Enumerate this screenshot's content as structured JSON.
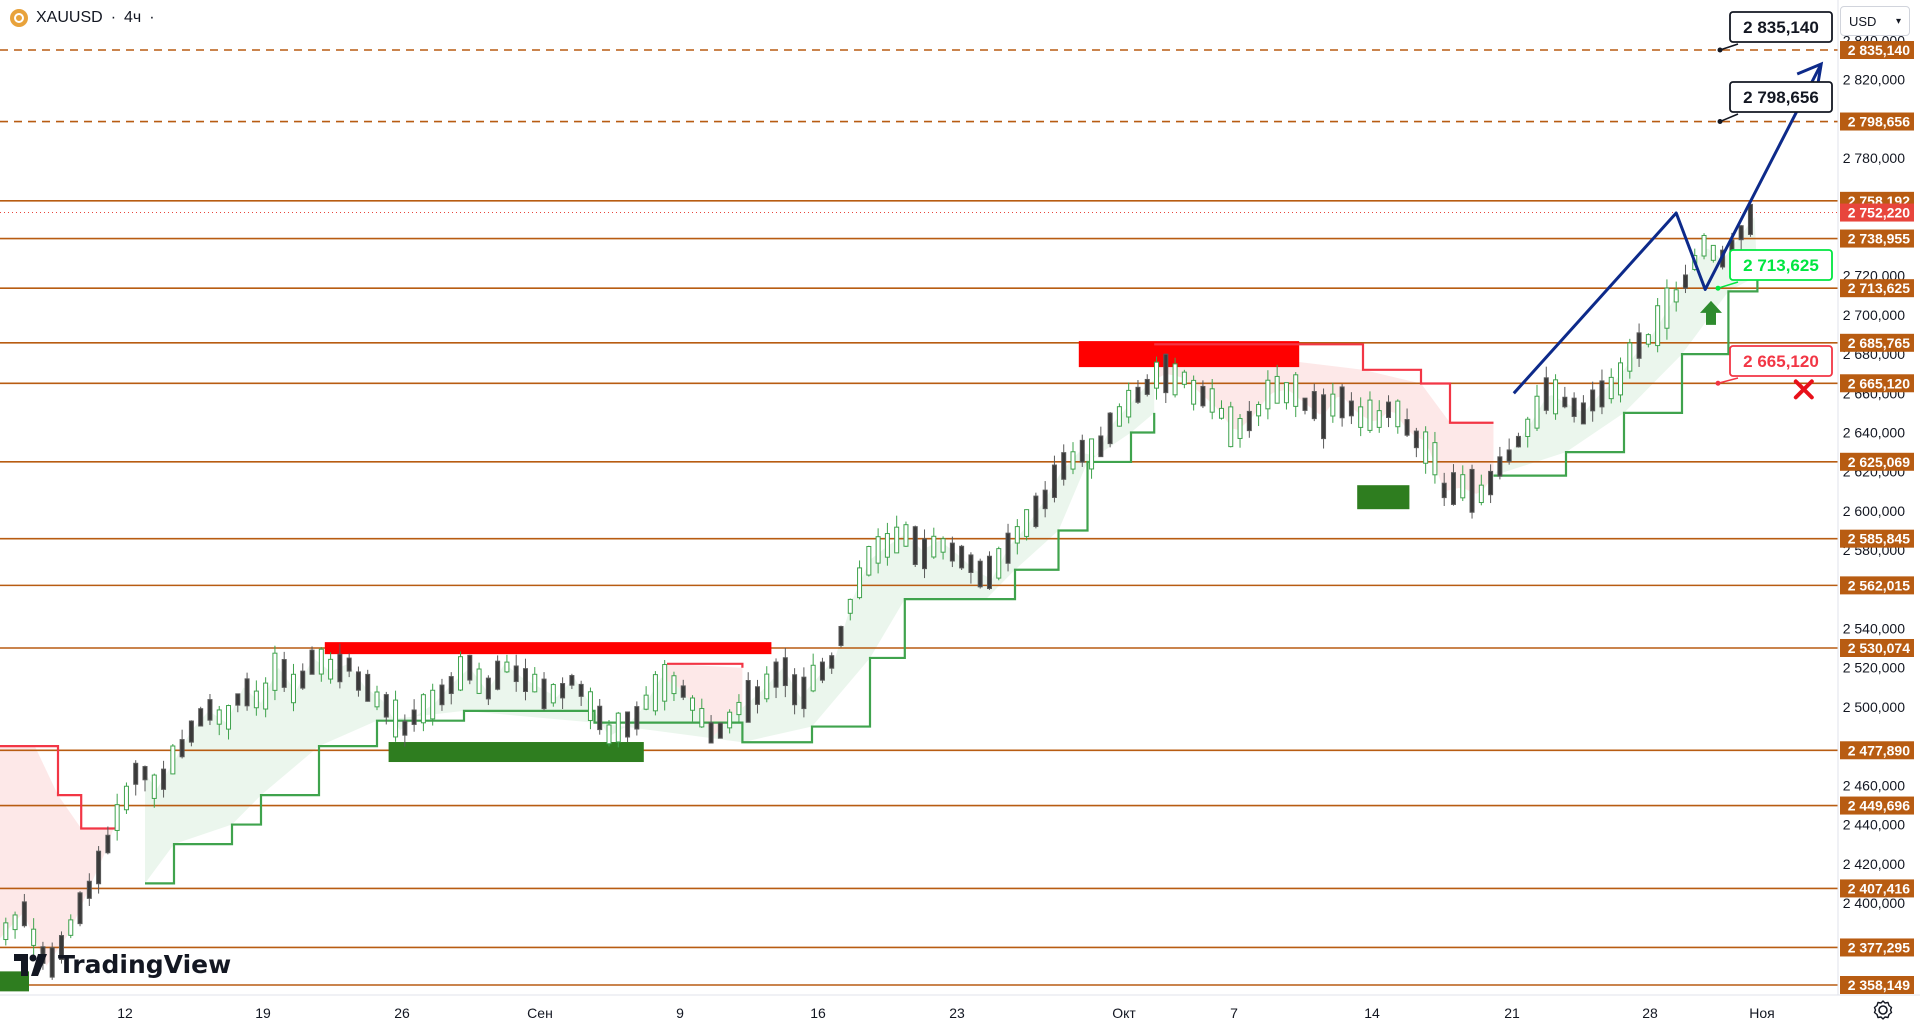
{
  "header": {
    "symbol": "XAUUSD",
    "separator": "·",
    "interval": "4ч",
    "dot": "·"
  },
  "currency_selector": {
    "value": "USD",
    "icon": "chevron-down-icon"
  },
  "watermark": {
    "text": "TradingView",
    "icon": "tradingview-logo-icon"
  },
  "settings": {
    "icon": "gear-icon"
  },
  "colors": {
    "level_line": "#b85c12",
    "level_label_bg": "#b85c12",
    "current_label_bg": "#e8453c",
    "green": "#3fa34d",
    "red": "#f23645",
    "forecast": "#0d2a8a",
    "support_label": "#00e640",
    "stop_label": "#f23645"
  },
  "chart_data": {
    "type": "candlestick",
    "title": "",
    "xlabel": "",
    "ylabel": "",
    "ylim": [
      2354,
      2844
    ],
    "grid": false,
    "x_tick_labels": [
      "12",
      "19",
      "26",
      "Сен",
      "9",
      "16",
      "23",
      "Окт",
      "7",
      "14",
      "21",
      "28",
      "Ноя"
    ],
    "y_tick_labels": [
      2840,
      2820,
      2780,
      2720,
      2700,
      2680,
      2660,
      2640,
      2620,
      2600,
      2580,
      2540,
      2520,
      2500,
      2480,
      2460,
      2440,
      2420,
      2400
    ],
    "horizontal_levels": [
      {
        "value": 2835.14,
        "label": "2 835,140",
        "style": "dashed"
      },
      {
        "value": 2798.656,
        "label": "2 798,656",
        "style": "dashed"
      },
      {
        "value": 2758.192,
        "label": "2 758,192",
        "style": "solid"
      },
      {
        "value": 2738.955,
        "label": "2 738,955",
        "style": "solid"
      },
      {
        "value": 2713.625,
        "label": "2 713,625",
        "style": "solid"
      },
      {
        "value": 2685.765,
        "label": "2 685,765",
        "style": "solid"
      },
      {
        "value": 2665.12,
        "label": "2 665,120",
        "style": "solid"
      },
      {
        "value": 2625.069,
        "label": "2 625,069",
        "style": "solid"
      },
      {
        "value": 2585.845,
        "label": "2 585,845",
        "style": "solid"
      },
      {
        "value": 2562.015,
        "label": "2 562,015",
        "style": "solid"
      },
      {
        "value": 2530.074,
        "label": "2 530,074",
        "style": "solid"
      },
      {
        "value": 2477.89,
        "label": "2 477,890",
        "style": "solid"
      },
      {
        "value": 2449.696,
        "label": "2 449,696",
        "style": "solid"
      },
      {
        "value": 2407.416,
        "label": "2 407,416",
        "style": "solid"
      },
      {
        "value": 2377.295,
        "label": "2 377,295",
        "style": "solid"
      },
      {
        "value": 2358.149,
        "label": "2 358,149",
        "style": "solid"
      }
    ],
    "current_price": {
      "value": 2752.22,
      "label": "2 752,220"
    },
    "callouts": [
      {
        "text": "2 835,140",
        "value": 2835.14,
        "kind": "target"
      },
      {
        "text": "2 798,656",
        "value": 2798.656,
        "kind": "target"
      },
      {
        "text": "2 713,625",
        "value": 2713.625,
        "kind": "entry"
      },
      {
        "text": "2 665,120",
        "value": 2665.12,
        "kind": "stop"
      }
    ],
    "price_path": [
      [
        0,
        2382
      ],
      [
        8,
        2395
      ],
      [
        16,
        2368
      ],
      [
        24,
        2385
      ],
      [
        30,
        2405
      ],
      [
        36,
        2425
      ],
      [
        42,
        2450
      ],
      [
        48,
        2470
      ],
      [
        54,
        2458
      ],
      [
        60,
        2472
      ],
      [
        66,
        2488
      ],
      [
        72,
        2498
      ],
      [
        78,
        2492
      ],
      [
        84,
        2510
      ],
      [
        90,
        2502
      ],
      [
        96,
        2520
      ],
      [
        102,
        2508
      ],
      [
        108,
        2525
      ],
      [
        114,
        2518
      ],
      [
        120,
        2522
      ],
      [
        126,
        2510
      ],
      [
        132,
        2503
      ],
      [
        138,
        2488
      ],
      [
        144,
        2496
      ],
      [
        150,
        2502
      ],
      [
        156,
        2512
      ],
      [
        162,
        2520
      ],
      [
        168,
        2508
      ],
      [
        174,
        2522
      ],
      [
        180,
        2515
      ],
      [
        186,
        2510
      ],
      [
        192,
        2505
      ],
      [
        198,
        2515
      ],
      [
        204,
        2500
      ],
      [
        210,
        2485
      ],
      [
        216,
        2490
      ],
      [
        222,
        2500
      ],
      [
        228,
        2515
      ],
      [
        234,
        2510
      ],
      [
        240,
        2500
      ],
      [
        246,
        2485
      ],
      [
        252,
        2495
      ],
      [
        258,
        2502
      ],
      [
        264,
        2510
      ],
      [
        270,
        2520
      ],
      [
        276,
        2505
      ],
      [
        282,
        2515
      ],
      [
        288,
        2525
      ],
      [
        294,
        2555
      ],
      [
        300,
        2575
      ],
      [
        306,
        2582
      ],
      [
        312,
        2588
      ],
      [
        318,
        2580
      ],
      [
        324,
        2585
      ],
      [
        330,
        2578
      ],
      [
        336,
        2570
      ],
      [
        342,
        2565
      ],
      [
        348,
        2582
      ],
      [
        354,
        2592
      ],
      [
        360,
        2605
      ],
      [
        366,
        2620
      ],
      [
        372,
        2630
      ],
      [
        378,
        2628
      ],
      [
        384,
        2645
      ],
      [
        390,
        2655
      ],
      [
        396,
        2665
      ],
      [
        402,
        2670
      ],
      [
        408,
        2668
      ],
      [
        414,
        2660
      ],
      [
        420,
        2652
      ],
      [
        426,
        2640
      ],
      [
        432,
        2648
      ],
      [
        438,
        2660
      ],
      [
        444,
        2662
      ],
      [
        450,
        2655
      ],
      [
        456,
        2648
      ],
      [
        462,
        2660
      ],
      [
        468,
        2650
      ],
      [
        474,
        2645
      ],
      [
        480,
        2652
      ],
      [
        486,
        2640
      ],
      [
        492,
        2635
      ],
      [
        498,
        2610
      ],
      [
        504,
        2612
      ],
      [
        510,
        2608
      ],
      [
        516,
        2620
      ],
      [
        522,
        2632
      ],
      [
        528,
        2645
      ],
      [
        534,
        2660
      ],
      [
        540,
        2655
      ],
      [
        546,
        2650
      ],
      [
        552,
        2660
      ],
      [
        558,
        2668
      ],
      [
        564,
        2680
      ],
      [
        570,
        2690
      ],
      [
        576,
        2705
      ],
      [
        582,
        2720
      ],
      [
        588,
        2735
      ],
      [
        594,
        2728
      ],
      [
        600,
        2740
      ],
      [
        606,
        2752
      ]
    ],
    "trailing_stop": {
      "red_segments": [
        [
          [
            0,
            2480
          ],
          [
            12,
            2480
          ],
          [
            20,
            2455
          ],
          [
            28,
            2438
          ],
          [
            40,
            2438
          ]
        ],
        [
          [
            230,
            2522
          ],
          [
            256,
            2520
          ]
        ],
        [
          [
            398,
            2685
          ],
          [
            470,
            2672
          ],
          [
            490,
            2665
          ],
          [
            500,
            2645
          ],
          [
            515,
            2645
          ]
        ]
      ],
      "green_segments": [
        [
          [
            50,
            2410
          ],
          [
            60,
            2430
          ],
          [
            80,
            2440
          ],
          [
            90,
            2455
          ],
          [
            110,
            2480
          ],
          [
            130,
            2493
          ],
          [
            160,
            2498
          ],
          [
            205,
            2492
          ],
          [
            256,
            2482
          ],
          [
            280,
            2490
          ],
          [
            300,
            2525
          ],
          [
            312,
            2555
          ],
          [
            340,
            2555
          ],
          [
            350,
            2570
          ],
          [
            365,
            2590
          ],
          [
            375,
            2625
          ],
          [
            390,
            2640
          ],
          [
            398,
            2650
          ]
        ],
        [
          [
            515,
            2618
          ],
          [
            540,
            2630
          ],
          [
            560,
            2650
          ],
          [
            580,
            2680
          ],
          [
            596,
            2712
          ],
          [
            606,
            2720
          ]
        ]
      ]
    },
    "zones": [
      {
        "type": "resistance",
        "from_x": 112,
        "to_x": 266,
        "value": 2530
      },
      {
        "type": "support",
        "from_x": 134,
        "to_x": 222,
        "value": 2477
      },
      {
        "type": "resistance",
        "from_x": 372,
        "to_x": 448,
        "value": 2680
      },
      {
        "type": "support",
        "from_x": 468,
        "to_x": 486,
        "value": 2607
      },
      {
        "type": "support",
        "from_x": 0,
        "to_x": 10,
        "value": 2360
      }
    ],
    "forecast_path": [
      [
        522,
        2660
      ],
      [
        578,
        2752
      ],
      [
        588,
        2713
      ],
      [
        628,
        2828
      ]
    ],
    "annotations": [
      {
        "type": "arrow-up",
        "x": 590,
        "value": 2700
      },
      {
        "type": "cross",
        "x": 622,
        "value": 2662
      }
    ]
  }
}
